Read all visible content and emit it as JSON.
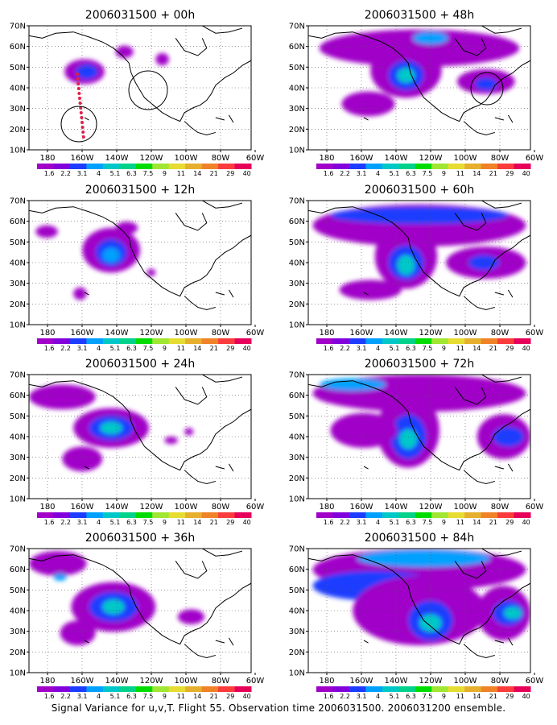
{
  "caption": "Signal Variance for u,v,T. Flight 55. Observation time 2006031500. 2006031200 ensemble.",
  "y_ticks": [
    "70N",
    "60N",
    "50N",
    "40N",
    "30N",
    "20N",
    "10N"
  ],
  "x_ticks": [
    "180",
    "160W",
    "140W",
    "120W",
    "100W",
    "80W",
    "60W"
  ],
  "colorbar": {
    "labels": [
      "1.6",
      "2.2",
      "3.1",
      "4",
      "5.1",
      "6.3",
      "7.5",
      "9",
      "11",
      "14",
      "21",
      "29",
      "40"
    ],
    "colors": [
      "#a000c8",
      "#8200dc",
      "#1e3cff",
      "#00a0ff",
      "#00c8c8",
      "#00d28c",
      "#00dc00",
      "#a0e632",
      "#e6dc32",
      "#e6af2d",
      "#f08228",
      "#fa3c3c",
      "#e6005a"
    ]
  },
  "panels": [
    {
      "title": "2006031500 + 00h"
    },
    {
      "title": "2006031500 + 48h"
    },
    {
      "title": "2006031500 + 12h"
    },
    {
      "title": "2006031500 + 60h"
    },
    {
      "title": "2006031500 + 24h"
    },
    {
      "title": "2006031500 + 72h"
    },
    {
      "title": "2006031500 + 36h"
    },
    {
      "title": "2006031500 + 84h"
    }
  ]
}
